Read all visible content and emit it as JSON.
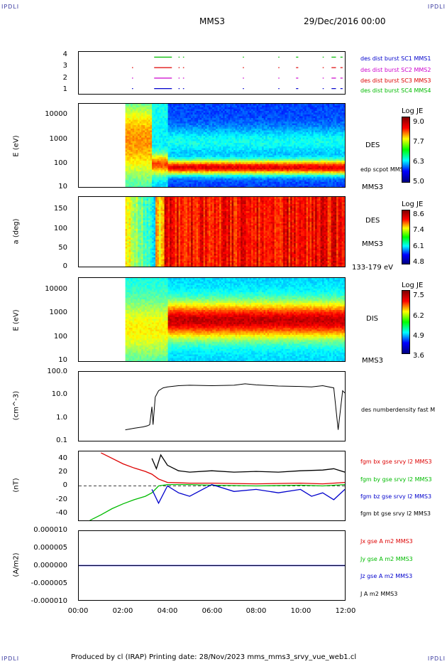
{
  "header": {
    "left_corner": "IPDLI",
    "right_corner": "IPDLI",
    "spacecraft": "MMS3",
    "date": "29/Dec/2016 00:00"
  },
  "footer": {
    "left_corner": "IPDLI",
    "right_corner": "IPDLI",
    "text": "Produced by cl (IRAP)   Printing date: 28/Nov/2023   mms_mms3_srvy_vue_web1.cl"
  },
  "colors": {
    "blue": "#0000cc",
    "magenta": "#cc00cc",
    "red": "#dd0000",
    "green": "#00bb00",
    "black": "#000000"
  },
  "time_axis": {
    "ticks": [
      "00:00",
      "02:00",
      "04:00",
      "06:00",
      "08:00",
      "10:00",
      "12:00"
    ]
  },
  "chart_data": [
    {
      "type": "scatter",
      "name": "burst availability",
      "ylim": [
        0.5,
        4.5
      ],
      "y_ticks": [
        "4",
        "3",
        "2",
        "1"
      ],
      "labels": [
        {
          "text": "des dist burst SC1 MMS1",
          "color": "#0000cc"
        },
        {
          "text": "des dist burst SC2 MMS2",
          "color": "#cc00cc"
        },
        {
          "text": "des dist burst SC3 MMS3",
          "color": "#dd0000"
        },
        {
          "text": "des dist burst SC4 MMS4",
          "color": "#00bb00"
        }
      ],
      "series": [
        {
          "sc": 4,
          "color": "#00bb00",
          "segments": [
            [
              3.4,
              4.2
            ],
            [
              4.5,
              4.55
            ],
            [
              4.7,
              4.75
            ],
            [
              7.4,
              7.45
            ],
            [
              9.0,
              9.05
            ],
            [
              9.8,
              9.9
            ],
            [
              11.0,
              11.05
            ],
            [
              11.4,
              11.6
            ],
            [
              11.8,
              11.9
            ]
          ]
        },
        {
          "sc": 3,
          "color": "#dd0000",
          "segments": [
            [
              2.4,
              2.45
            ],
            [
              3.4,
              4.2
            ],
            [
              4.5,
              4.55
            ],
            [
              4.7,
              4.75
            ],
            [
              7.4,
              7.45
            ],
            [
              9.0,
              9.05
            ],
            [
              9.8,
              9.9
            ],
            [
              11.0,
              11.05
            ],
            [
              11.4,
              11.6
            ],
            [
              11.8,
              11.9
            ]
          ]
        },
        {
          "sc": 2,
          "color": "#cc00cc",
          "segments": [
            [
              2.4,
              2.45
            ],
            [
              3.4,
              4.2
            ],
            [
              4.5,
              4.55
            ],
            [
              4.7,
              4.75
            ],
            [
              7.4,
              7.45
            ],
            [
              9.0,
              9.05
            ],
            [
              9.8,
              9.9
            ],
            [
              11.0,
              11.05
            ],
            [
              11.4,
              11.6
            ],
            [
              11.8,
              11.9
            ]
          ]
        },
        {
          "sc": 1,
          "color": "#0000cc",
          "segments": [
            [
              2.4,
              2.45
            ],
            [
              3.4,
              4.2
            ],
            [
              4.5,
              4.55
            ],
            [
              4.7,
              4.75
            ],
            [
              7.4,
              7.45
            ],
            [
              9.0,
              9.05
            ],
            [
              9.8,
              9.9
            ],
            [
              11.0,
              11.05
            ],
            [
              11.4,
              11.6
            ],
            [
              11.8,
              11.9
            ]
          ]
        }
      ]
    },
    {
      "type": "heatmap",
      "name": "DES energy spectrogram",
      "ylabel": "E (eV)",
      "yscale": "log",
      "ylim": [
        10,
        30000
      ],
      "y_ticks": [
        "10000",
        "1000",
        "100",
        "10"
      ],
      "right_labels": [
        "DES",
        "edp scpot MMS3",
        "MMS3"
      ],
      "colorbar": {
        "title": "Log JE",
        "ticks": [
          "9.0",
          "7.7",
          "6.3",
          "5.0"
        ]
      },
      "x_range_hours": [
        2.1,
        12.0
      ],
      "peak_log_energy": 1.85
    },
    {
      "type": "heatmap",
      "name": "DES pitch angle",
      "ylabel": "a (deg)",
      "ylim": [
        0,
        180
      ],
      "y_ticks": [
        "150",
        "100",
        "50",
        "0"
      ],
      "right_labels": [
        "DES",
        "MMS3",
        "133-179 eV"
      ],
      "colorbar": {
        "title": "Log JE",
        "ticks": [
          "8.6",
          "7.4",
          "6.1",
          "4.8"
        ]
      },
      "x_range_hours": [
        2.1,
        12.0
      ]
    },
    {
      "type": "heatmap",
      "name": "DIS energy spectrogram",
      "ylabel": "E (eV)",
      "yscale": "log",
      "ylim": [
        10,
        30000
      ],
      "y_ticks": [
        "10000",
        "1000",
        "100",
        "10"
      ],
      "right_labels": [
        "DIS",
        "MMS3"
      ],
      "colorbar": {
        "title": "Log JE",
        "ticks": [
          "7.5",
          "6.2",
          "4.9",
          "3.6"
        ]
      },
      "x_range_hours": [
        2.1,
        12.0
      ]
    },
    {
      "type": "line",
      "name": "number density",
      "ylabel": "(cm^-3)",
      "yscale": "log",
      "ylim": [
        0.1,
        100
      ],
      "y_ticks": [
        "100.0",
        "10.0",
        "1.0",
        "0.1"
      ],
      "right_labels": [
        "des numberdensity fast M"
      ],
      "series": [
        {
          "x": [
            2.1,
            2.5,
            2.9,
            3.1,
            3.2,
            3.3,
            3.35,
            3.45,
            3.6,
            3.8,
            4.0,
            4.5,
            5.0,
            6.0,
            7.0,
            7.5,
            8.0,
            9.0,
            10.0,
            10.5,
            11.0,
            11.5,
            11.7,
            11.9,
            12.0
          ],
          "y": [
            0.3,
            0.35,
            0.4,
            0.45,
            0.5,
            3.0,
            0.5,
            8.0,
            15,
            20,
            22,
            25,
            26,
            25,
            26,
            30,
            27,
            24,
            23,
            22,
            25,
            20,
            0.3,
            15,
            12
          ]
        }
      ]
    },
    {
      "type": "line",
      "name": "magnetic field",
      "ylabel": "(nT)",
      "ylim": [
        -50,
        50
      ],
      "y_ticks": [
        "40",
        "20",
        "0",
        "-20",
        "-40"
      ],
      "right_labels": [
        {
          "text": "fgm bx gse srvy l2 MMS3",
          "color": "#dd0000"
        },
        {
          "text": "fgm by gse srvy l2 MMS3",
          "color": "#00bb00"
        },
        {
          "text": "fgm bz gse srvy l2 MMS3",
          "color": "#0000cc"
        },
        {
          "text": "fgm bt gse srvy l2 MMS3",
          "color": "#000000"
        }
      ],
      "series": [
        {
          "name": "fgm bx gse srvy l2 MMS3",
          "color": "#dd0000",
          "x": [
            1.0,
            1.5,
            2.0,
            2.5,
            3.0,
            3.3,
            3.6,
            4.0,
            5.0,
            6.0,
            8.0,
            10.0,
            11.0,
            12.0
          ],
          "y": [
            48,
            40,
            32,
            26,
            21,
            17,
            10,
            5,
            4,
            4,
            3,
            4,
            3,
            5
          ]
        },
        {
          "name": "fgm by gse srvy l2 MMS3",
          "color": "#00bb00",
          "x": [
            0.5,
            1.0,
            1.5,
            2.0,
            2.5,
            3.0,
            3.3,
            3.6,
            4.0,
            5.0,
            6.0,
            8.0,
            10.0,
            11.0,
            12.0
          ],
          "y": [
            -50,
            -42,
            -33,
            -26,
            -20,
            -15,
            -10,
            0,
            2,
            2,
            1,
            0,
            1,
            0,
            2
          ]
        },
        {
          "name": "fgm bz gse srvy l2 MMS3",
          "color": "#0000cc",
          "x": [
            3.3,
            3.6,
            4.0,
            4.5,
            5.0,
            6.0,
            7.0,
            8.0,
            9.0,
            10.0,
            10.5,
            11.0,
            11.5,
            12.0
          ],
          "y": [
            -5,
            -25,
            0,
            -10,
            -15,
            2,
            -8,
            -5,
            -10,
            -5,
            -15,
            -10,
            -20,
            -5
          ]
        },
        {
          "name": "fgm bt gse srvy l2 MMS3",
          "color": "#000000",
          "x": [
            3.3,
            3.5,
            3.7,
            4.0,
            4.5,
            5.0,
            6.0,
            7.0,
            8.0,
            9.0,
            10.0,
            11.0,
            11.5,
            12.0
          ],
          "y": [
            40,
            25,
            45,
            30,
            22,
            20,
            22,
            20,
            21,
            20,
            22,
            23,
            25,
            20
          ]
        }
      ]
    },
    {
      "type": "line",
      "name": "current density",
      "ylabel": "(A/m2)",
      "ylim": [
        -0.0001,
        0.0001
      ],
      "y_ticks": [
        "0.000010",
        "0.000005",
        "0.000000",
        "-0.000005",
        "-0.000010"
      ],
      "right_labels": [
        {
          "text": "Jx gse A m2 MMS3",
          "color": "#dd0000"
        },
        {
          "text": "Jy gse A m2 MMS3",
          "color": "#00bb00"
        },
        {
          "text": "Jz gse A m2 MMS3",
          "color": "#0000cc"
        },
        {
          "text": "J A m2 MMS3",
          "color": "#000000"
        }
      ]
    }
  ]
}
